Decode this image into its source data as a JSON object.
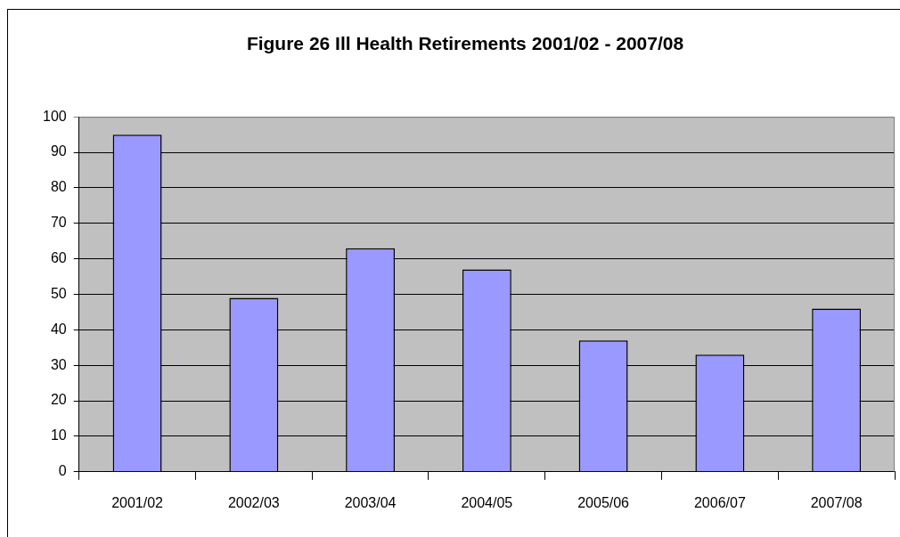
{
  "chart_data": {
    "type": "bar",
    "title": "Figure 26 Ill Health Retirements 2001/02 - 2007/08",
    "categories": [
      "2001/02",
      "2002/03",
      "2003/04",
      "2004/05",
      "2005/06",
      "2006/07",
      "2007/08"
    ],
    "values": [
      95,
      49,
      63,
      57,
      37,
      33,
      46
    ],
    "color": "#9999ff",
    "ylim": [
      0,
      100
    ],
    "yticks": [
      0,
      10,
      20,
      30,
      40,
      50,
      60,
      70,
      80,
      90,
      100
    ],
    "grid": "y"
  }
}
